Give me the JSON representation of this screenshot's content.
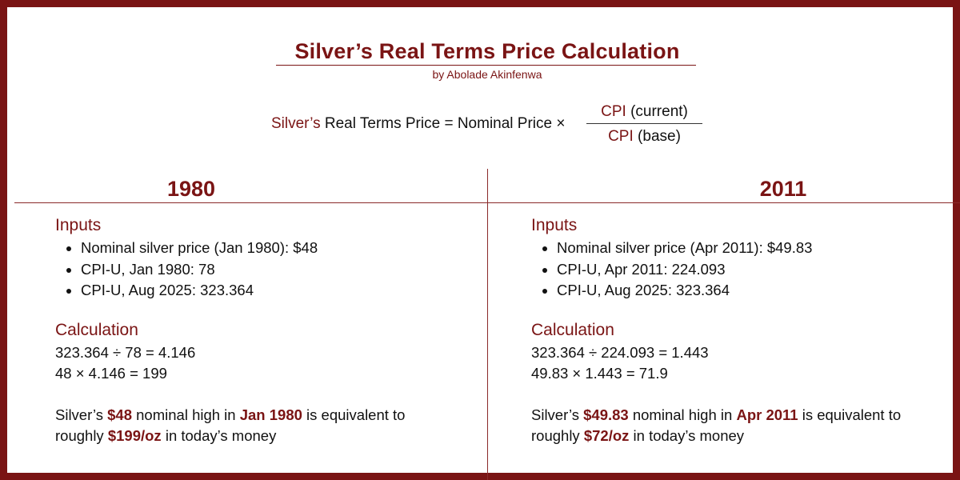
{
  "title": "Silver’s Real Terms Price Calculation",
  "byline": "by Abolade Akinfenwa",
  "formula": {
    "lhs_accent": "Silver’s",
    "lhs_rest": " Real Terms Price = Nominal Price ×",
    "num_accent": "CPI",
    "num_rest": " (current)",
    "den_accent": "CPI",
    "den_rest": " (base)"
  },
  "columns": [
    {
      "year": "1980",
      "inputs_heading": "Inputs",
      "inputs": [
        "Nominal silver price (Jan 1980): $48",
        "CPI-U, Jan 1980: 78",
        "CPI-U, Aug 2025: 323.364"
      ],
      "calc_heading": "Calculation",
      "calc_lines": [
        "323.364 ÷ 78 = 4.146",
        "48 × 4.146 = 199"
      ],
      "summary": {
        "p1": "Silver’s ",
        "price": "$48",
        "p2": " nominal high in ",
        "date": "Jan 1980",
        "p3": " is equivalent to roughly ",
        "real": "$199/oz",
        "p4": " in today’s money"
      }
    },
    {
      "year": "2011",
      "inputs_heading": "Inputs",
      "inputs": [
        "Nominal silver price (Apr 2011): $49.83",
        "CPI-U, Apr 2011: 224.093",
        "CPI-U, Aug 2025: 323.364"
      ],
      "calc_heading": "Calculation",
      "calc_lines": [
        "323.364 ÷ 224.093 = 1.443",
        "49.83 × 1.443 = 71.9"
      ],
      "summary": {
        "p1": "Silver’s ",
        "price": "$49.83",
        "p2": " nominal high in ",
        "date": "Apr 2011",
        "p3": " is equivalent to roughly ",
        "real": "$72/oz",
        "p4": " in today’s money"
      }
    }
  ]
}
